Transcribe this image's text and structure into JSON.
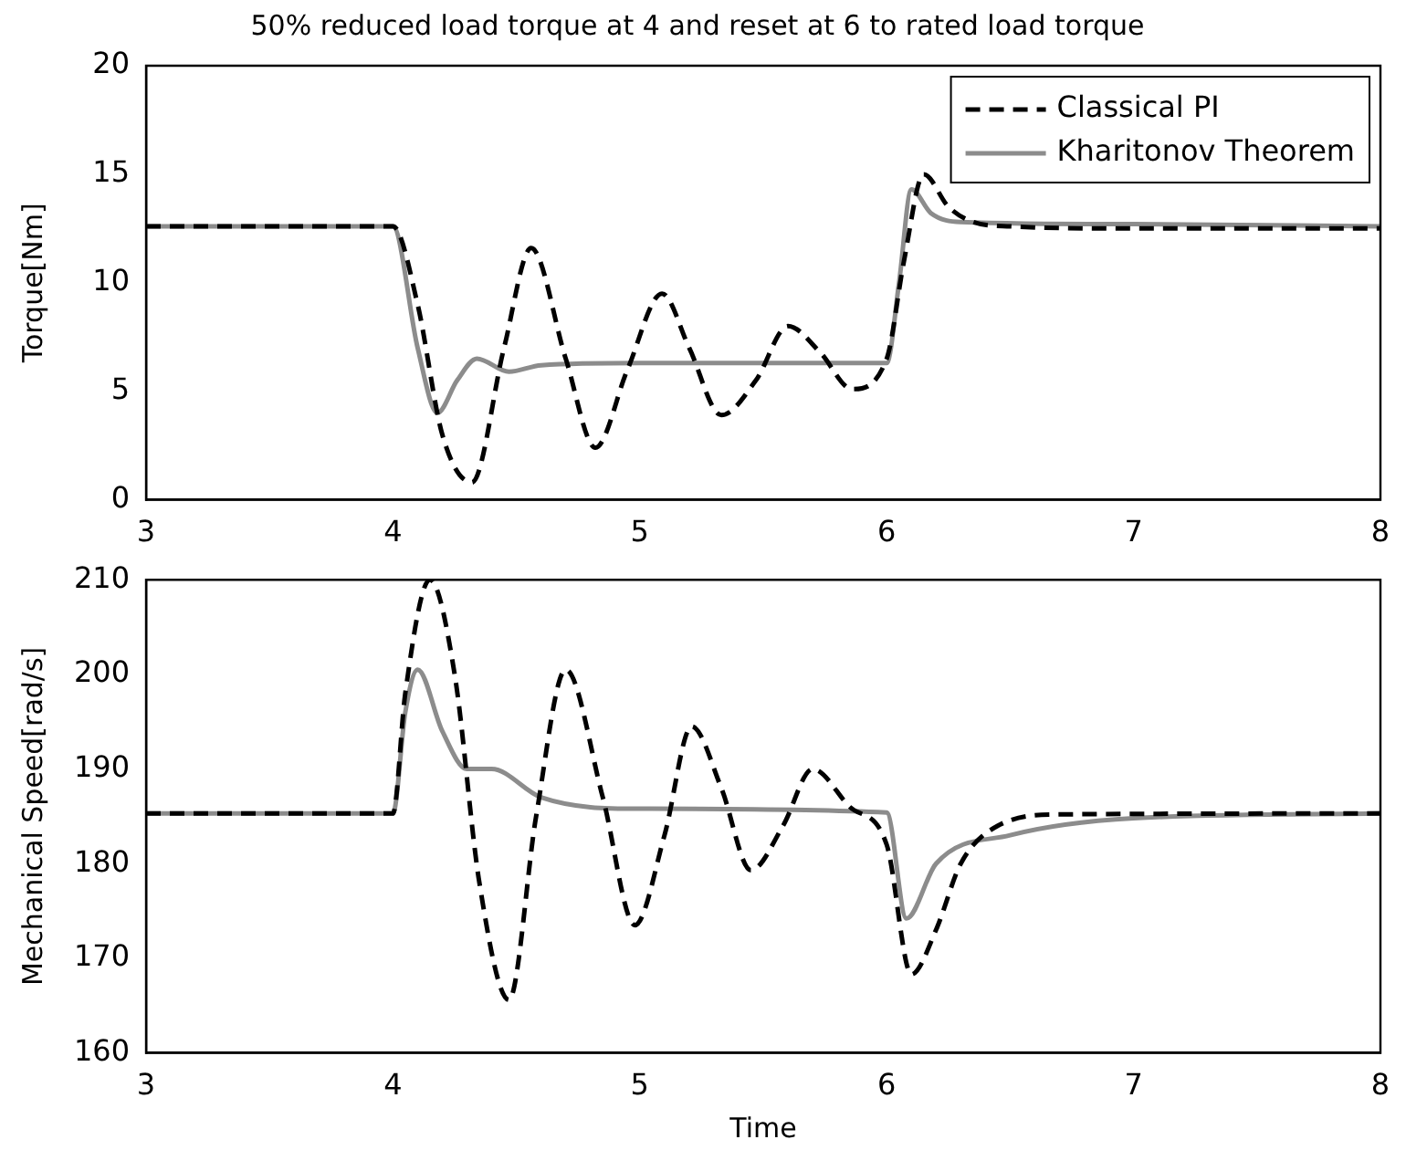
{
  "chart_data": [
    {
      "type": "line",
      "title": "50% reduced load torque at 4 and reset at 6 to rated load torque",
      "ylabel": "Torque[Nm]",
      "xlim": [
        3,
        8
      ],
      "xticks": [
        3,
        4,
        5,
        6,
        7,
        8
      ],
      "ylim": [
        0,
        20
      ],
      "yticks": [
        0,
        5,
        10,
        15,
        20
      ],
      "legend": "top right",
      "series": [
        {
          "name": "Classical PI",
          "color": "#000000",
          "line_style": "dashed",
          "x": [
            3,
            4,
            4.1,
            4.2,
            4.32,
            4.45,
            4.56,
            4.7,
            4.82,
            4.95,
            5.09,
            5.2,
            5.33,
            5.47,
            5.6,
            5.73,
            5.86,
            6.0,
            6.07,
            6.15,
            6.25,
            6.35,
            6.5,
            7,
            8
          ],
          "values": [
            12.6,
            12.6,
            9,
            3,
            0.8,
            7,
            11.6,
            6.5,
            2.4,
            6,
            9.5,
            7,
            3.9,
            5.5,
            8,
            6.8,
            5.1,
            6.5,
            11,
            15,
            13.5,
            12.8,
            12.6,
            12.5,
            12.5
          ]
        },
        {
          "name": "Kharitonov Theorem",
          "color": "#8c8c8c",
          "line_style": "solid",
          "x": [
            3,
            4,
            4.1,
            4.18,
            4.26,
            4.34,
            4.47,
            4.6,
            5,
            6,
            6.05,
            6.1,
            6.18,
            6.3,
            7,
            8
          ],
          "values": [
            12.6,
            12.6,
            7,
            4,
            5.5,
            6.5,
            5.9,
            6.2,
            6.3,
            6.3,
            10,
            14.3,
            13.2,
            12.8,
            12.7,
            12.6
          ]
        }
      ]
    },
    {
      "type": "line",
      "xlabel": "Time",
      "ylabel": "Mechanical Speed[rad/s]",
      "xlim": [
        3,
        8
      ],
      "xticks": [
        3,
        4,
        5,
        6,
        7,
        8
      ],
      "ylim": [
        160,
        210
      ],
      "yticks": [
        160,
        170,
        180,
        190,
        200,
        210
      ],
      "series": [
        {
          "color": "#000000",
          "line_style": "dashed",
          "x": [
            3,
            4,
            4.05,
            4.15,
            4.25,
            4.35,
            4.47,
            4.58,
            4.7,
            4.85,
            4.98,
            5.1,
            5.21,
            5.33,
            5.45,
            5.58,
            5.7,
            5.85,
            6,
            6.1,
            6.2,
            6.3,
            6.45,
            6.7,
            8
          ],
          "values": [
            185.3,
            185.3,
            198,
            210,
            200,
            178,
            165.6,
            185,
            200.5,
            187,
            173.5,
            183,
            194.5,
            188,
            179.3,
            184,
            190,
            186,
            182,
            168.3,
            173,
            180,
            184,
            185.2,
            185.3
          ]
        },
        {
          "color": "#8c8c8c",
          "line_style": "solid",
          "x": [
            3,
            4,
            4.05,
            4.1,
            4.2,
            4.3,
            4.4,
            4.6,
            5,
            6,
            6.08,
            6.2,
            6.5,
            7,
            8
          ],
          "values": [
            185.3,
            185.3,
            196,
            200.5,
            194,
            190,
            190,
            187,
            185.8,
            185.4,
            174.2,
            180,
            183,
            184.8,
            185.3
          ]
        }
      ]
    }
  ]
}
